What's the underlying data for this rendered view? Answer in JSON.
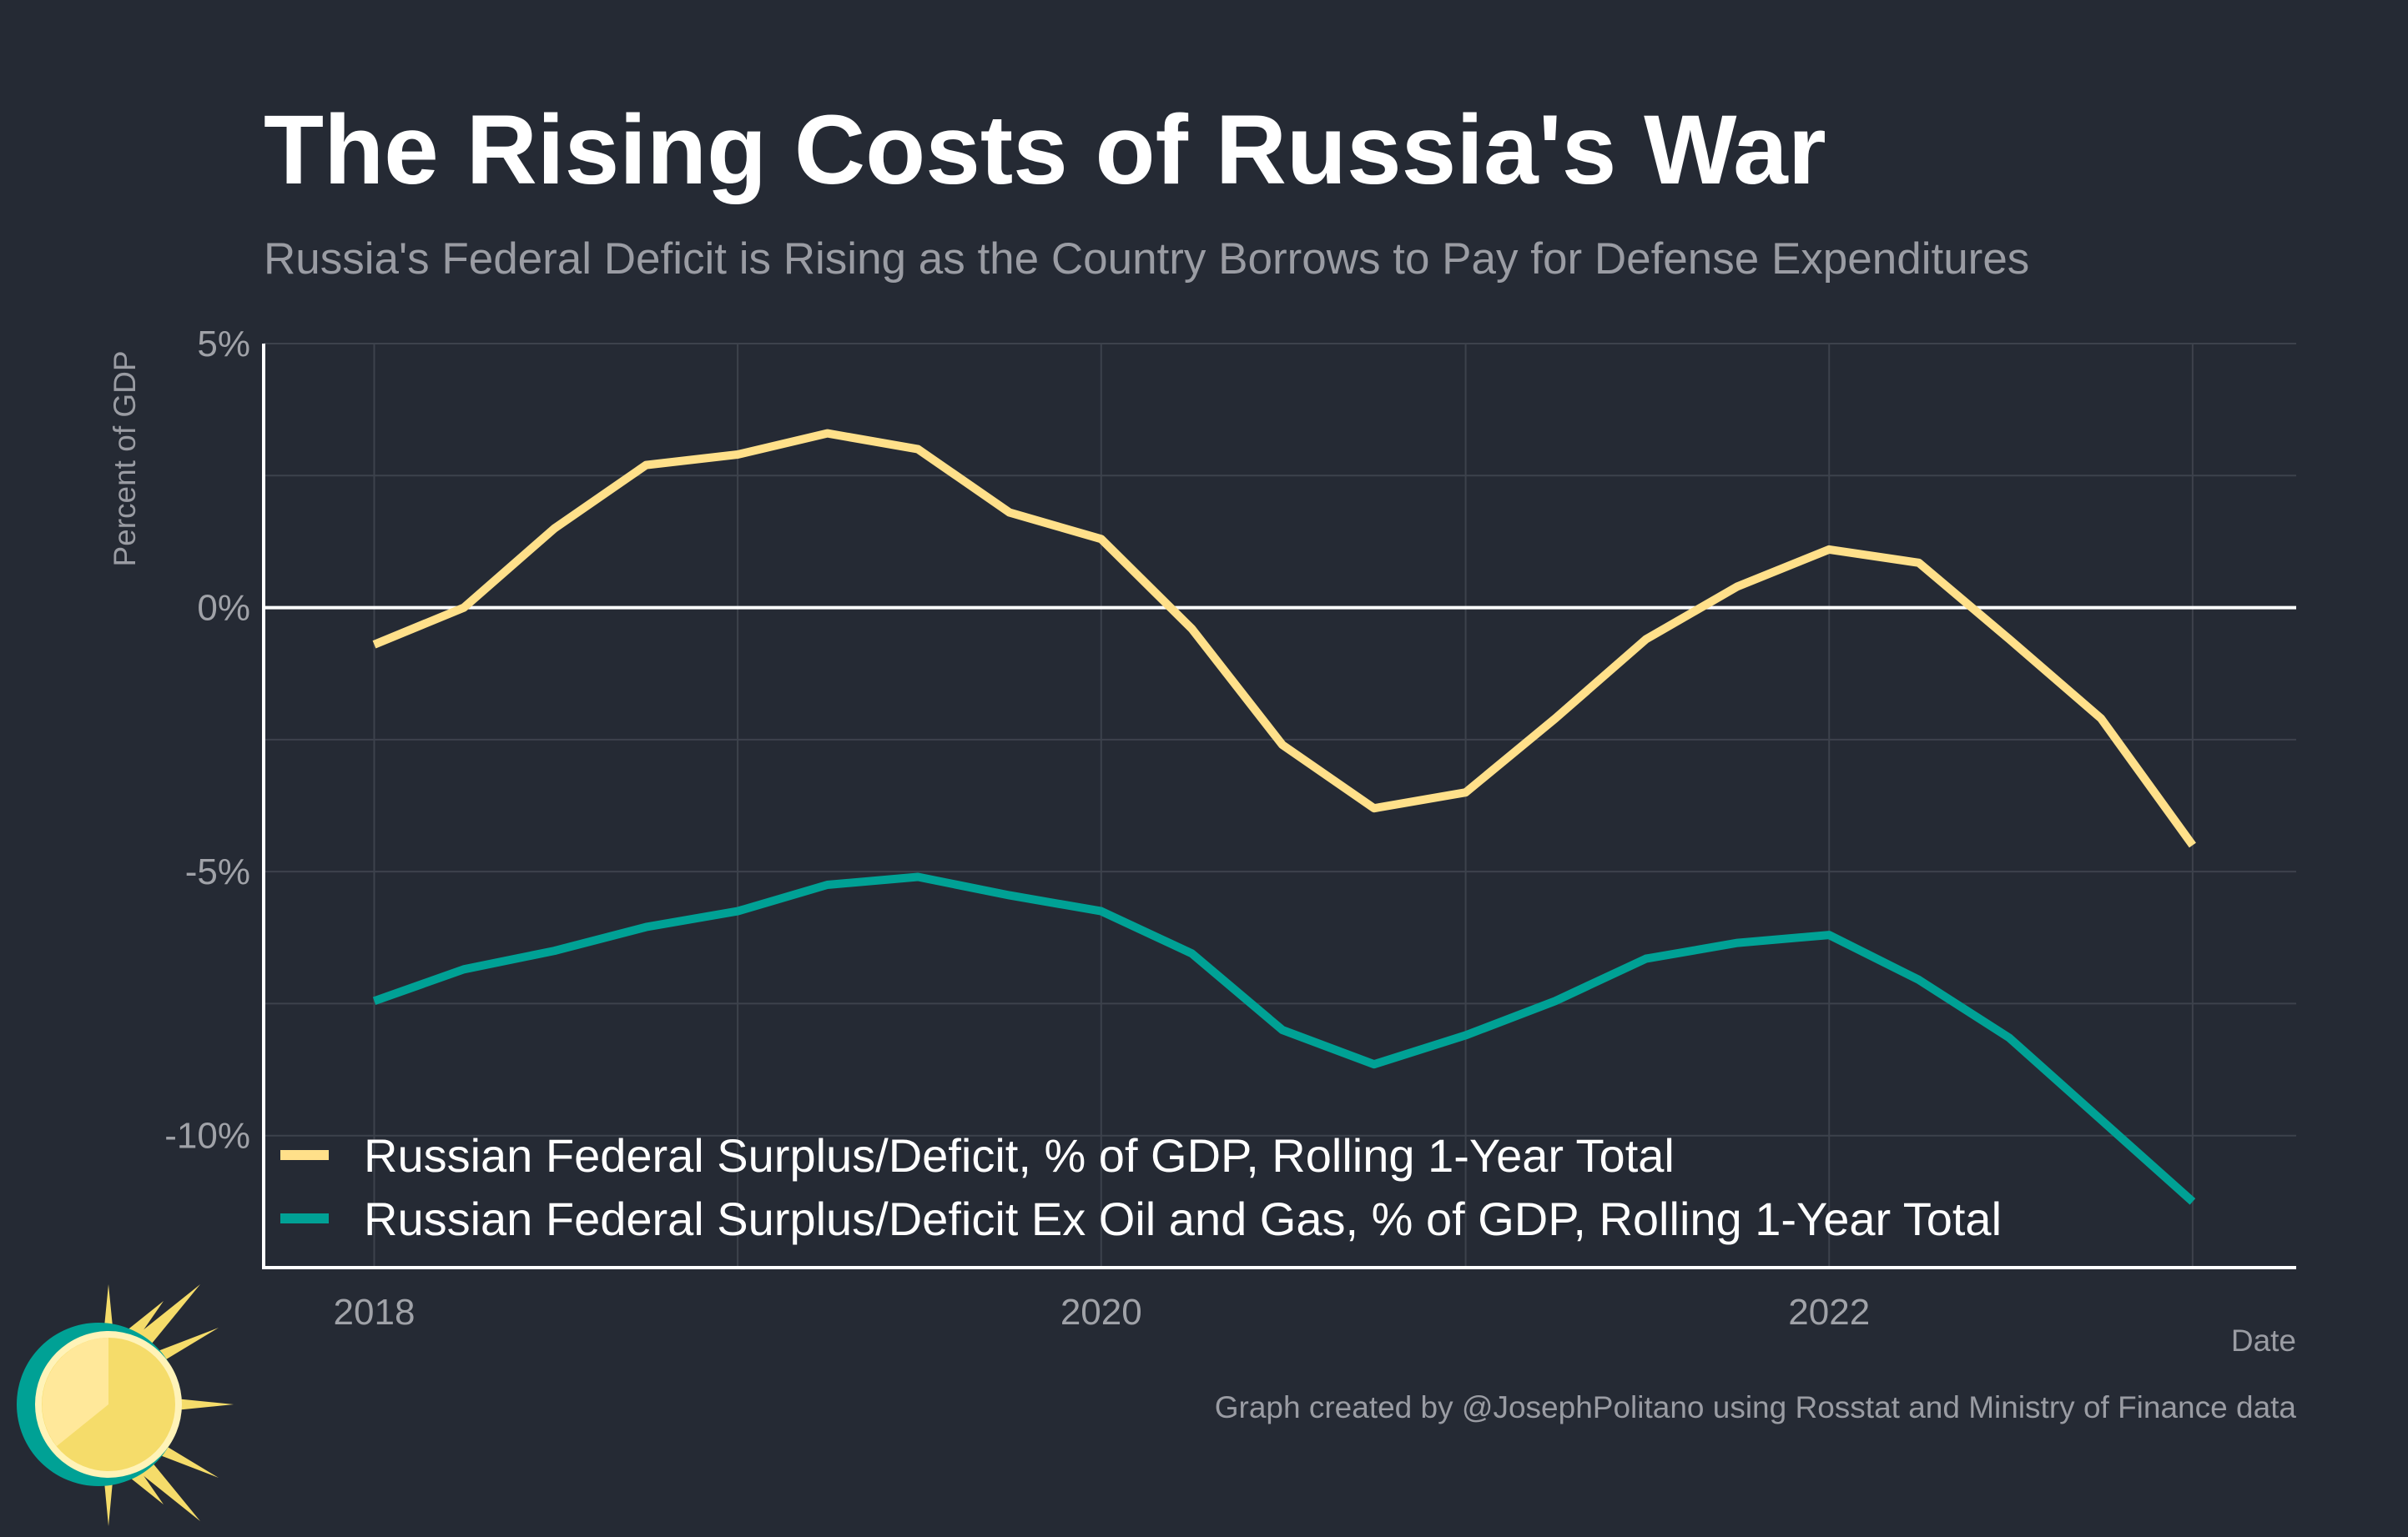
{
  "chart_data": {
    "type": "line",
    "title": "The Rising Costs of Russia's War",
    "subtitle": "Russia's Federal Deficit is Rising as the Country Borrows to Pay for Defense Expenditures",
    "ylabel": "Percent of GDP",
    "xlabel": "Date",
    "caption": "Graph created by @JosephPolitano using Rosstat and Ministry of Finance data",
    "ylim": [
      -12.5,
      5
    ],
    "y_ticks": [
      5,
      0,
      -5,
      -10
    ],
    "y_tick_labels": [
      "5%",
      "0%",
      "-5%",
      "-10%"
    ],
    "xlim": [
      "2017-09-12",
      "2023-04-15"
    ],
    "x_ticks": [
      "2018-01-01",
      "2020-01-01",
      "2022-01-01"
    ],
    "x_tick_labels": [
      "2018",
      "2020",
      "2022"
    ],
    "x": [
      "2018-01-01",
      "2018-04-01",
      "2018-07-01",
      "2018-10-01",
      "2019-01-01",
      "2019-04-01",
      "2019-07-01",
      "2019-10-01",
      "2020-01-01",
      "2020-04-01",
      "2020-07-01",
      "2020-10-01",
      "2021-01-01",
      "2021-04-01",
      "2021-07-01",
      "2021-10-01",
      "2022-01-01",
      "2022-04-01",
      "2022-07-01",
      "2022-10-01",
      "2023-01-01"
    ],
    "series": [
      {
        "name": "Russian Federal Surplus/Deficit, % of GDP, Rolling 1-Year Total",
        "color": "#FFE08A",
        "values": [
          -0.7,
          0.0,
          1.5,
          2.7,
          2.9,
          3.3,
          3.0,
          1.8,
          1.3,
          -0.4,
          -2.6,
          -3.8,
          -3.5,
          -2.1,
          -0.6,
          0.4,
          1.1,
          0.85,
          -0.6,
          -2.1,
          -4.5
        ]
      },
      {
        "name": "Russian Federal Surplus/Deficit Ex Oil and Gas, % of GDP, Rolling 1-Year Total",
        "color": "#00A195",
        "values": [
          -7.45,
          -6.85,
          -6.5,
          -6.05,
          -5.75,
          -5.25,
          -5.1,
          -5.45,
          -5.75,
          -6.55,
          -8.0,
          -8.65,
          -8.1,
          -7.45,
          -6.65,
          -6.35,
          -6.2,
          -7.05,
          -8.15,
          -9.7,
          -11.25
        ]
      }
    ],
    "zero_line": true,
    "grid": true,
    "legend_position": "bottom-left"
  },
  "colors": {
    "background": "#252A34",
    "grid": "#3D424C",
    "axis": "#FFFFFF"
  },
  "logo": {
    "icon": "sun-logo-icon"
  }
}
